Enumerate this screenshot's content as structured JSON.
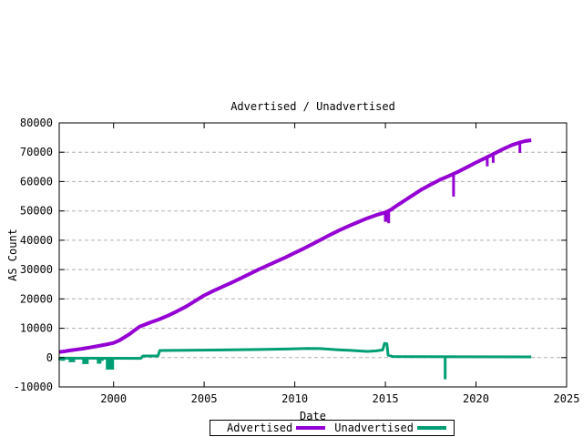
{
  "title": "Advertised / Unadvertised",
  "colors": {
    "advertised": "#9400d3",
    "unadvertised": "#009e73",
    "grid": "#b0b0b0",
    "axis": "#000000",
    "background": "#ffffff"
  },
  "chart_data": {
    "type": "line",
    "title": "Advertised / Unadvertised",
    "xlabel": "Date",
    "ylabel": "AS Count",
    "xlim": [
      1997,
      2025
    ],
    "ylim": [
      -10000,
      80000
    ],
    "x_ticks": [
      2000,
      2005,
      2010,
      2015,
      2020,
      2025
    ],
    "y_ticks": [
      -10000,
      0,
      10000,
      20000,
      30000,
      40000,
      50000,
      60000,
      70000,
      80000
    ],
    "grid": "horizontal-dashed",
    "grid_color": "#b0b0b0",
    "legend_position": "bottom-center-below-axis",
    "legend_entries": [
      "Advertised",
      "Unadvertised"
    ],
    "series": [
      {
        "name": "Advertised",
        "color": "#9400d3",
        "width": 4,
        "points": [
          [
            1997.0,
            1900
          ],
          [
            1997.3,
            2150
          ],
          [
            1997.6,
            2450
          ],
          [
            1998.0,
            2800
          ],
          [
            1998.4,
            3150
          ],
          [
            1998.8,
            3550
          ],
          [
            1999.2,
            4000
          ],
          [
            1999.6,
            4450
          ],
          [
            2000.0,
            5000
          ],
          [
            2000.3,
            5800
          ],
          [
            2000.6,
            6900
          ],
          [
            2000.9,
            8100
          ],
          [
            2001.2,
            9500
          ],
          [
            2001.45,
            10600
          ],
          [
            2001.7,
            11200
          ],
          [
            2002.0,
            11900
          ],
          [
            2002.5,
            13000
          ],
          [
            2003.0,
            14300
          ],
          [
            2003.5,
            15800
          ],
          [
            2004.0,
            17400
          ],
          [
            2004.5,
            19300
          ],
          [
            2005.0,
            21200
          ],
          [
            2005.5,
            22700
          ],
          [
            2006.0,
            24100
          ],
          [
            2006.5,
            25500
          ],
          [
            2007.0,
            27000
          ],
          [
            2007.5,
            28500
          ],
          [
            2008.0,
            30000
          ],
          [
            2008.5,
            31400
          ],
          [
            2009.0,
            32800
          ],
          [
            2009.5,
            34200
          ],
          [
            2010.0,
            35700
          ],
          [
            2010.5,
            37200
          ],
          [
            2011.0,
            38800
          ],
          [
            2011.5,
            40400
          ],
          [
            2012.0,
            42000
          ],
          [
            2012.5,
            43500
          ],
          [
            2013.0,
            44900
          ],
          [
            2013.5,
            46200
          ],
          [
            2014.0,
            47500
          ],
          [
            2014.5,
            48600
          ],
          [
            2015.0,
            49500
          ],
          [
            2015.3,
            50400
          ],
          [
            2015.7,
            52100
          ],
          [
            2016.0,
            53300
          ],
          [
            2016.5,
            55300
          ],
          [
            2017.0,
            57300
          ],
          [
            2017.5,
            59000
          ],
          [
            2018.0,
            60600
          ],
          [
            2018.5,
            61900
          ],
          [
            2019.0,
            63300
          ],
          [
            2019.5,
            64900
          ],
          [
            2020.0,
            66500
          ],
          [
            2020.5,
            68000
          ],
          [
            2021.0,
            69500
          ],
          [
            2021.5,
            71100
          ],
          [
            2022.0,
            72500
          ],
          [
            2022.4,
            73300
          ],
          [
            2022.7,
            73800
          ],
          [
            2023.05,
            74100
          ]
        ],
        "spikes": [
          [
            2015.02,
            49400,
            46300,
            4
          ],
          [
            2015.18,
            49700,
            45800,
            3
          ],
          [
            2018.76,
            62200,
            54900,
            3
          ],
          [
            2020.62,
            68200,
            65200,
            3
          ],
          [
            2020.95,
            68800,
            66400,
            3
          ],
          [
            2022.42,
            73300,
            69800,
            3
          ]
        ]
      },
      {
        "name": "Unadvertised",
        "color": "#009e73",
        "width": 3,
        "points": [
          [
            1997.0,
            -200
          ],
          [
            2001.5,
            -250
          ],
          [
            2001.62,
            550
          ],
          [
            2002.45,
            550
          ],
          [
            2002.55,
            2400
          ],
          [
            2004.0,
            2500
          ],
          [
            2006.0,
            2600
          ],
          [
            2008.0,
            2750
          ],
          [
            2009.5,
            2900
          ],
          [
            2010.7,
            3100
          ],
          [
            2011.4,
            3050
          ],
          [
            2012.3,
            2700
          ],
          [
            2013.2,
            2400
          ],
          [
            2014.0,
            2100
          ],
          [
            2014.5,
            2300
          ],
          [
            2014.85,
            2600
          ],
          [
            2014.95,
            4800
          ],
          [
            2015.08,
            4700
          ],
          [
            2015.15,
            800
          ],
          [
            2015.4,
            350
          ],
          [
            2016.5,
            300
          ],
          [
            2023.05,
            250
          ]
        ],
        "spikes": [
          [
            1997.05,
            -200,
            -900,
            4
          ],
          [
            1997.2,
            -200,
            -1100,
            5
          ],
          [
            1997.7,
            -200,
            -1600,
            7
          ],
          [
            1998.45,
            -200,
            -2200,
            7
          ],
          [
            1999.2,
            -200,
            -2100,
            5
          ],
          [
            1999.38,
            -200,
            -1100,
            3
          ],
          [
            1999.8,
            -200,
            -4100,
            9
          ],
          [
            2018.3,
            250,
            -7400,
            3
          ]
        ]
      }
    ]
  }
}
